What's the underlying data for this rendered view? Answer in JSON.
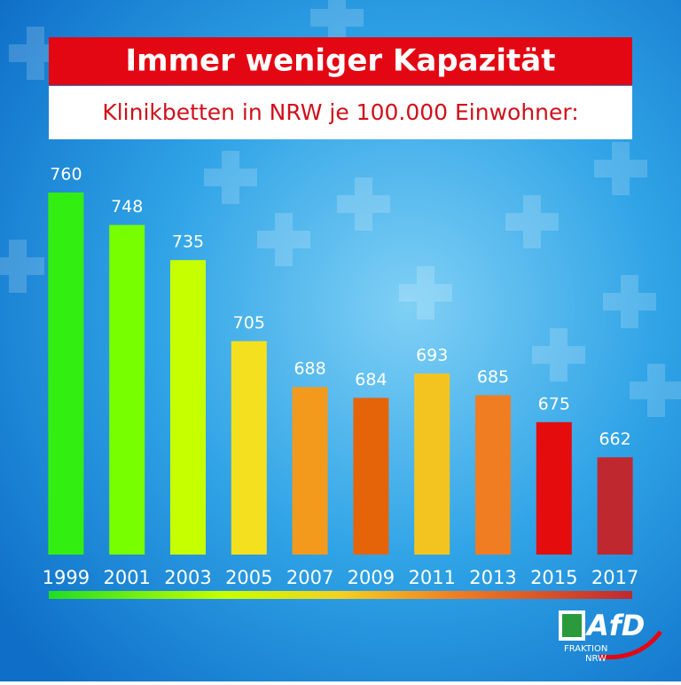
{
  "chart_data": {
    "type": "bar",
    "title": "Immer weniger Kapazität",
    "subtitle": "Klinikbetten in NRW je 100.000 Einwohner:",
    "categories": [
      "1999",
      "2001",
      "2003",
      "2005",
      "2007",
      "2009",
      "2011",
      "2013",
      "2015",
      "2017"
    ],
    "values": [
      760,
      748,
      735,
      705,
      688,
      684,
      693,
      685,
      675,
      662
    ],
    "colors": [
      "#33ee11",
      "#77ff00",
      "#c6ff00",
      "#f5e020",
      "#f39a1c",
      "#e5640a",
      "#f3c420",
      "#f07d22",
      "#e40c0c",
      "#c0282f"
    ],
    "ylim": [
      626,
      760
    ]
  },
  "logo": {
    "name": "AfD",
    "line1": "FRAKTION",
    "line2": "NRW"
  }
}
